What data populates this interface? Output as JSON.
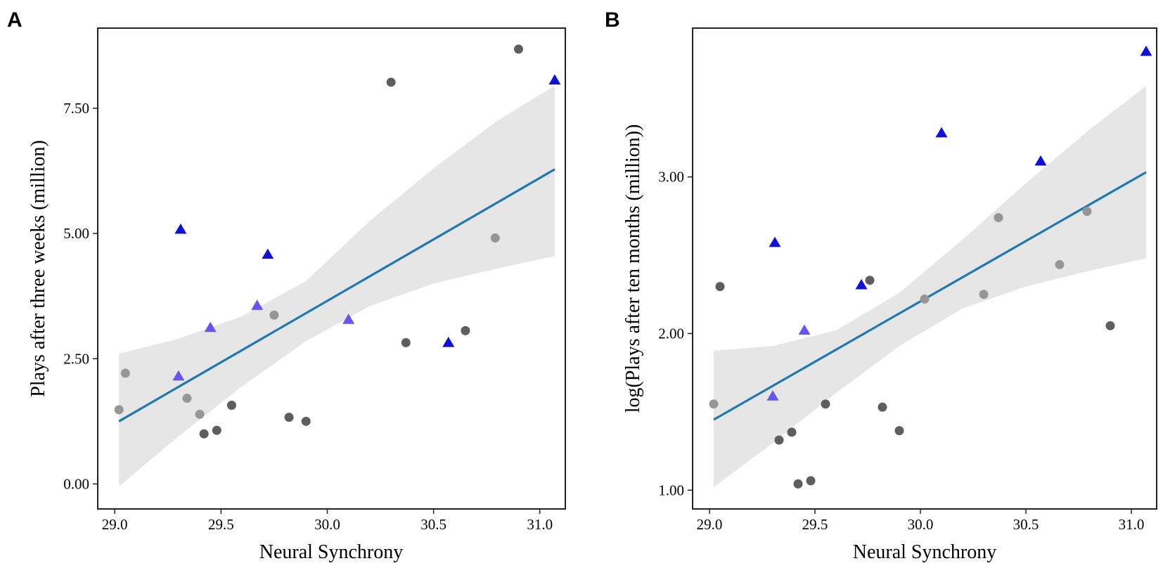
{
  "chart_data": [
    {
      "type": "scatter",
      "panel": "A",
      "xlabel": "Neural Synchrony",
      "ylabel": "Plays after three weeks (million)",
      "xlim": [
        28.92,
        31.12
      ],
      "ylim": [
        -0.5,
        9.1
      ],
      "xticks": [
        29.0,
        29.5,
        30.0,
        30.5,
        31.0
      ],
      "xtick_labels": [
        "29.0",
        "29.5",
        "30.0",
        "30.5",
        "31.0"
      ],
      "yticks": [
        0.0,
        2.5,
        5.0,
        7.5
      ],
      "ytick_labels": [
        "0.00",
        "2.50",
        "5.00",
        "7.50"
      ],
      "fit": {
        "x": [
          29.02,
          31.07
        ],
        "y": [
          1.25,
          6.28
        ]
      },
      "confidence_band": {
        "x": [
          29.02,
          29.3,
          29.6,
          29.9,
          30.2,
          30.5,
          30.8,
          31.07
        ],
        "lower": [
          -0.05,
          0.95,
          1.95,
          2.85,
          3.55,
          4.0,
          4.3,
          4.55
        ],
        "upper": [
          2.6,
          2.9,
          3.35,
          4.05,
          5.25,
          6.3,
          7.25,
          7.95
        ]
      },
      "series": [
        {
          "name": "dark",
          "marker": "circle",
          "color": "#5e5e5e",
          "x": [
            29.42,
            29.48,
            29.55,
            29.82,
            29.9,
            30.3,
            30.37,
            30.65,
            30.9
          ],
          "y": [
            1.0,
            1.07,
            1.57,
            1.33,
            1.25,
            8.02,
            2.82,
            3.06,
            8.68
          ]
        },
        {
          "name": "grey",
          "marker": "circle",
          "color": "#969696",
          "x": [
            29.02,
            29.05,
            29.34,
            29.4,
            29.75,
            30.79
          ],
          "y": [
            1.48,
            2.21,
            1.71,
            1.39,
            3.37,
            4.91
          ]
        },
        {
          "name": "light-blue",
          "marker": "triangle",
          "color": "#6655ee",
          "x": [
            29.3,
            29.45,
            29.67,
            30.1
          ],
          "y": [
            2.15,
            3.12,
            3.56,
            3.28
          ]
        },
        {
          "name": "blue",
          "marker": "triangle",
          "color": "#1010d8",
          "x": [
            29.31,
            29.72,
            30.57,
            31.07
          ],
          "y": [
            5.08,
            4.58,
            2.82,
            8.06
          ]
        }
      ]
    },
    {
      "type": "scatter",
      "panel": "B",
      "xlabel": "Neural Synchrony",
      "ylabel": "log(Plays after ten months (million))",
      "xlim": [
        28.92,
        31.12
      ],
      "ylim": [
        0.88,
        3.95
      ],
      "xticks": [
        29.0,
        29.5,
        30.0,
        30.5,
        31.0
      ],
      "xtick_labels": [
        "29.0",
        "29.5",
        "30.0",
        "30.5",
        "31.0"
      ],
      "yticks": [
        1.0,
        2.0,
        3.0
      ],
      "ytick_labels": [
        "1.00",
        "2.00",
        "3.00"
      ],
      "fit": {
        "x": [
          29.02,
          31.07
        ],
        "y": [
          1.45,
          3.03
        ]
      },
      "confidence_band": {
        "x": [
          29.02,
          29.3,
          29.6,
          29.9,
          30.2,
          30.5,
          30.8,
          31.07
        ],
        "lower": [
          1.02,
          1.3,
          1.62,
          1.92,
          2.16,
          2.3,
          2.4,
          2.48
        ],
        "upper": [
          1.89,
          1.92,
          2.02,
          2.26,
          2.6,
          2.96,
          3.3,
          3.58
        ]
      },
      "series": [
        {
          "name": "dark",
          "marker": "circle",
          "color": "#5e5e5e",
          "x": [
            29.05,
            29.33,
            29.39,
            29.42,
            29.48,
            29.55,
            29.76,
            29.82,
            29.9,
            30.9
          ],
          "y": [
            2.3,
            1.32,
            1.37,
            1.04,
            1.06,
            1.55,
            2.34,
            1.53,
            1.38,
            2.05
          ]
        },
        {
          "name": "grey",
          "marker": "circle",
          "color": "#969696",
          "x": [
            29.02,
            30.02,
            30.3,
            30.37,
            30.66,
            30.79
          ],
          "y": [
            1.55,
            2.22,
            2.25,
            2.74,
            2.44,
            2.78
          ]
        },
        {
          "name": "light-blue",
          "marker": "triangle",
          "color": "#6655ee",
          "x": [
            29.3,
            29.45
          ],
          "y": [
            1.6,
            2.02
          ]
        },
        {
          "name": "blue",
          "marker": "triangle",
          "color": "#1010d8",
          "x": [
            29.31,
            29.72,
            30.1,
            30.57,
            31.07
          ],
          "y": [
            2.58,
            2.31,
            3.28,
            3.1,
            3.8
          ]
        }
      ]
    }
  ],
  "colors": {
    "fit_line": "#1f77b4",
    "band": "#e6e6e6"
  }
}
